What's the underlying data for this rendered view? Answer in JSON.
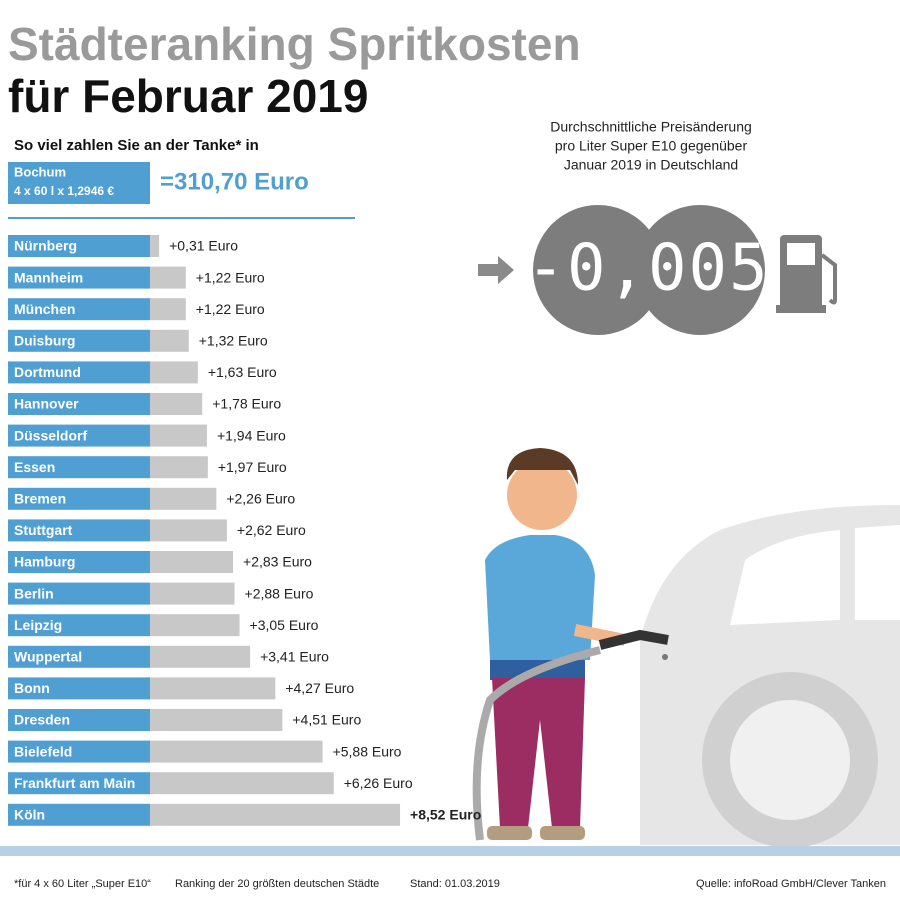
{
  "chart_data": {
    "type": "bar",
    "orientation": "horizontal",
    "title": [
      "Städteranking Spritkosten",
      "für Februar 2019"
    ],
    "subtitle": "So viel zahlen Sie an der Tanke* in",
    "reference": {
      "city": "Bochum",
      "formula": "4 x 60 l x 1,2946 €",
      "total": "=310,70 Euro"
    },
    "categories": [
      "Nürnberg",
      "Mannheim",
      "München",
      "Duisburg",
      "Dortmund",
      "Hannover",
      "Düsseldorf",
      "Essen",
      "Bremen",
      "Stuttgart",
      "Hamburg",
      "Berlin",
      "Leipzig",
      "Wuppertal",
      "Bonn",
      "Dresden",
      "Bielefeld",
      "Frankfurt am Main",
      "Köln"
    ],
    "values": [
      0.31,
      1.22,
      1.22,
      1.32,
      1.63,
      1.78,
      1.94,
      1.97,
      2.26,
      2.62,
      2.83,
      2.88,
      3.05,
      3.41,
      4.27,
      4.51,
      5.88,
      6.26,
      8.52
    ],
    "value_labels": [
      "+0,31 Euro",
      "+1,22 Euro",
      "+1,22 Euro",
      "+1,32 Euro",
      "+1,63 Euro",
      "+1,78 Euro",
      "+1,94 Euro",
      "+1,97 Euro",
      "+2,26 Euro",
      "+2,62 Euro",
      "+2,83 Euro",
      "+2,88 Euro",
      "+3,05 Euro",
      "+3,41 Euro",
      "+4,27 Euro",
      "+4,51 Euro",
      "+5,88 Euro",
      "+6,26 Euro",
      "+8,52 Euro"
    ],
    "color": "#c8c8c8",
    "label_color": "#4f9fd3"
  },
  "price_change": {
    "caption": [
      "Durchschnittliche Preisänderung",
      "pro Liter Super E10 gegenüber",
      "Januar 2019 in Deutschland"
    ],
    "display": "-0,005"
  },
  "footer": {
    "note": "*für 4 x 60 Liter „Super E10“",
    "ranking": "Ranking der 20 größten deutschen Städte",
    "date": "Stand: 01.03.2019",
    "source": "Quelle: infoRoad GmbH/Clever Tanken"
  }
}
